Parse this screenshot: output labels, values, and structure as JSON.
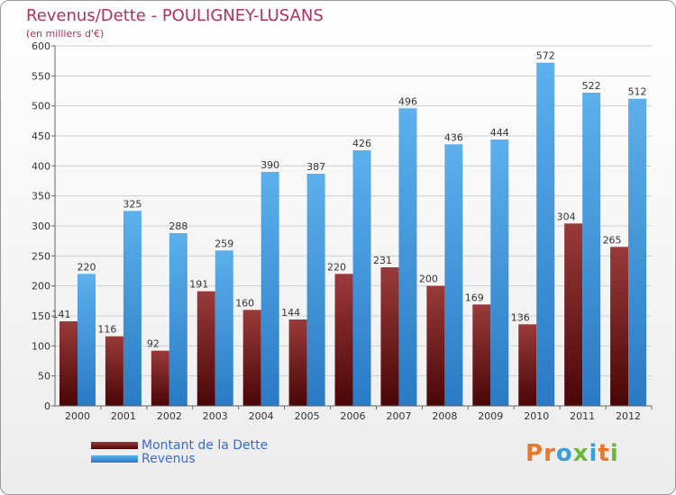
{
  "header": {
    "title": "Revenus/Dette - POULIGNEY-LUSANS",
    "subtitle": "(en milliers d'€)"
  },
  "logo": {
    "text": "Proxiti",
    "letter_colors": [
      "#e8782a",
      "#e8782a",
      "#3aa0d8",
      "#6cb83a",
      "#3aa0d8",
      "#e8782a",
      "#6cb83a"
    ]
  },
  "colors": {
    "dette_top": "#9a3a3a",
    "dette_bottom": "#4a0606",
    "revenus_top": "#5cb0ec",
    "revenus_bottom": "#2a7ac4",
    "title": "#b03060",
    "legend_text": "#3a6ad6"
  },
  "legend": [
    {
      "label": "Montant de la Dette",
      "series": 0
    },
    {
      "label": "Revenus",
      "series": 1
    }
  ],
  "chart_data": {
    "type": "bar",
    "title": "Revenus/Dette - POULIGNEY-LUSANS",
    "subtitle": "(en milliers d'€)",
    "categories": [
      "2000",
      "2001",
      "2002",
      "2003",
      "2004",
      "2005",
      "2006",
      "2007",
      "2008",
      "2009",
      "2010",
      "2011",
      "2012"
    ],
    "series": [
      {
        "name": "Montant de la Dette",
        "values": [
          141,
          116,
          92,
          191,
          160,
          144,
          220,
          231,
          200,
          169,
          136,
          304,
          265
        ]
      },
      {
        "name": "Revenus",
        "values": [
          220,
          325,
          288,
          259,
          390,
          387,
          426,
          496,
          436,
          444,
          572,
          522,
          512
        ]
      }
    ],
    "ylim": [
      0,
      600
    ],
    "yticks": [
      0,
      50,
      100,
      150,
      200,
      250,
      300,
      350,
      400,
      450,
      500,
      550,
      600
    ],
    "grid": true,
    "legend_position": "bottom-left"
  }
}
